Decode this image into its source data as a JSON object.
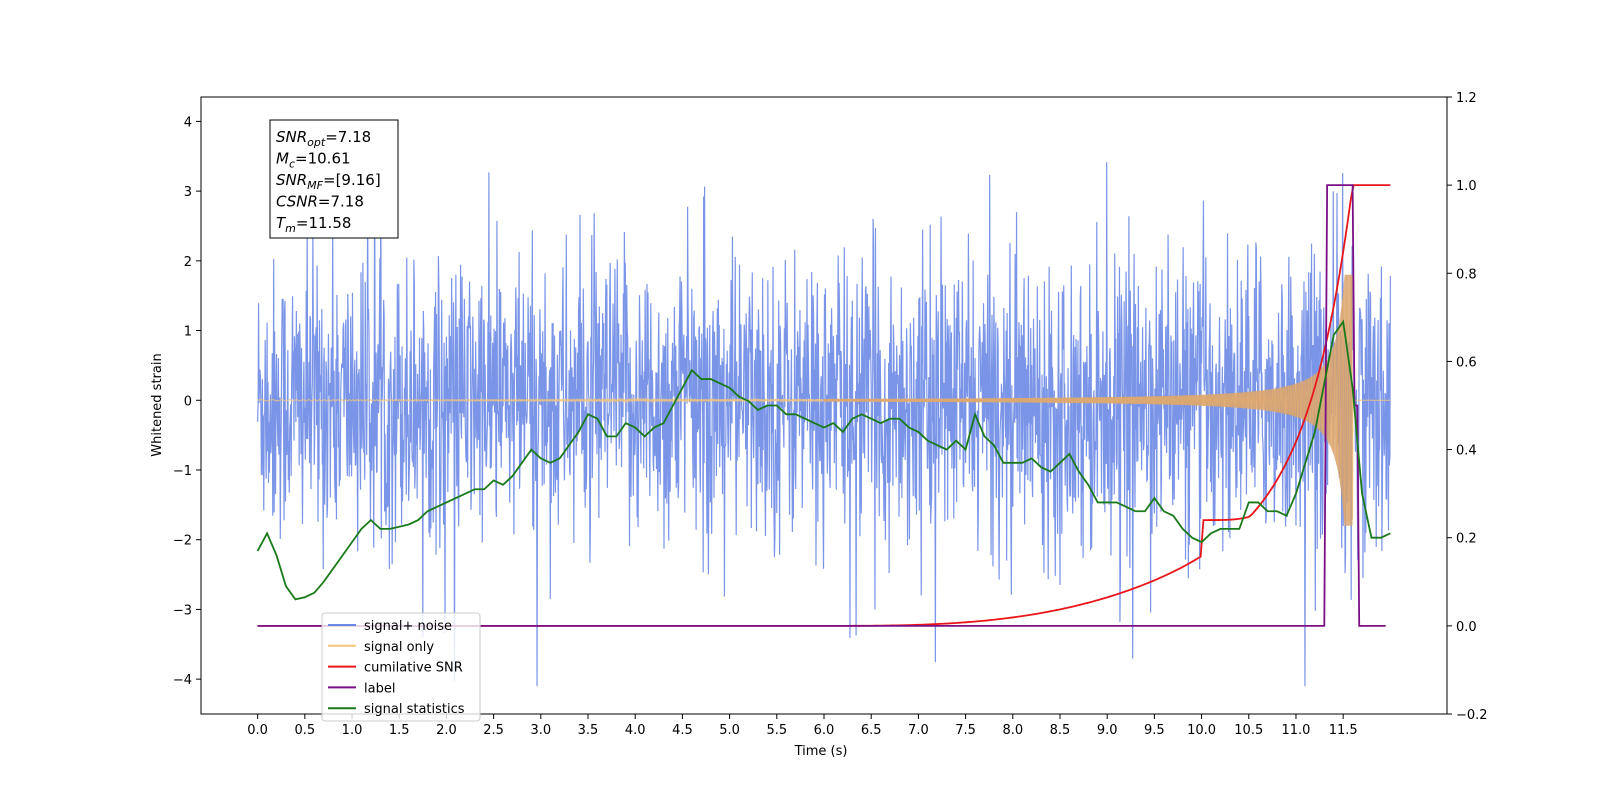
{
  "chart_data": {
    "type": "line",
    "xlabel": "Time (s)",
    "ylabel_left": "Whitened strain",
    "ylabel_right": "",
    "xlim": [
      -0.6,
      12.6
    ],
    "ylim_left": [
      -4.5,
      4.35
    ],
    "ylim_right": [
      -0.2,
      1.2
    ],
    "x_ticks": [
      "0.0",
      "0.5",
      "1.0",
      "1.5",
      "2.0",
      "2.5",
      "3.0",
      "3.5",
      "4.0",
      "4.5",
      "5.0",
      "5.5",
      "6.0",
      "6.5",
      "7.0",
      "7.5",
      "8.0",
      "8.5",
      "9.0",
      "9.5",
      "10.0",
      "10.5",
      "11.0",
      "11.5"
    ],
    "y_ticks_left": [
      "−4",
      "−3",
      "−2",
      "−1",
      "0",
      "1",
      "2",
      "3",
      "4"
    ],
    "y_ticks_right": [
      "−0.2",
      "0.0",
      "0.2",
      "0.4",
      "0.6",
      "0.8",
      "1.0",
      "1.2"
    ],
    "grid": false,
    "legend_position": "bottom-left",
    "annotation": {
      "lines": [
        {
          "base": "SNR",
          "sub": "opt",
          "rest": "=7.18"
        },
        {
          "base": "M",
          "sub": "c",
          "rest": "=10.61"
        },
        {
          "base": "SNR",
          "sub": "MF",
          "rest": "=[9.16]"
        },
        {
          "base": "CSNR",
          "sub": "",
          "rest": "=7.18"
        },
        {
          "base": "T",
          "sub": "m",
          "rest": "=11.58"
        }
      ]
    },
    "series": [
      {
        "name": "signal+ noise",
        "color": "#6b8ae6",
        "axis": "left",
        "kind": "noise",
        "description_range": [
          -4.1,
          3.95
        ]
      },
      {
        "name": "signal only",
        "color": "#f5c57a",
        "axis": "left",
        "kind": "chirp"
      },
      {
        "name": "cumilative SNR",
        "color": "#e8161a",
        "axis": "right",
        "x": [
          0.0,
          6.0,
          6.5,
          7.0,
          7.5,
          8.0,
          8.5,
          9.0,
          9.5,
          10.0,
          10.5,
          10.8,
          11.0,
          11.2,
          11.3,
          11.4,
          11.5,
          11.55,
          11.6,
          12.0
        ],
        "y": [
          0.0,
          0.0,
          0.002,
          0.01,
          0.03,
          0.065,
          0.1,
          0.14,
          0.185,
          0.24,
          0.31,
          0.37,
          0.42,
          0.5,
          0.57,
          0.68,
          0.88,
          0.97,
          1.0,
          1.0
        ]
      },
      {
        "name": "label",
        "color": "#7b0f86",
        "axis": "right",
        "x": [
          0.0,
          11.3,
          11.33,
          11.6,
          11.62,
          11.65,
          11.67,
          11.95
        ],
        "y": [
          0.0,
          0.0,
          1.0,
          1.0,
          0.5,
          0.5,
          0.0,
          0.0
        ]
      },
      {
        "name": "signal statistics",
        "color": "#1a7a1a",
        "axis": "right",
        "x": [
          0.0,
          0.1,
          0.2,
          0.3,
          0.4,
          0.5,
          0.6,
          0.7,
          0.8,
          0.9,
          1.0,
          1.1,
          1.2,
          1.3,
          1.4,
          1.5,
          1.6,
          1.7,
          1.8,
          1.9,
          2.0,
          2.1,
          2.2,
          2.3,
          2.4,
          2.5,
          2.6,
          2.7,
          2.8,
          2.9,
          3.0,
          3.1,
          3.2,
          3.3,
          3.4,
          3.5,
          3.6,
          3.7,
          3.8,
          3.9,
          4.0,
          4.1,
          4.2,
          4.3,
          4.4,
          4.5,
          4.6,
          4.7,
          4.8,
          4.9,
          5.0,
          5.1,
          5.2,
          5.3,
          5.4,
          5.5,
          5.6,
          5.7,
          5.8,
          5.9,
          6.0,
          6.1,
          6.2,
          6.3,
          6.4,
          6.5,
          6.6,
          6.7,
          6.8,
          6.9,
          7.0,
          7.1,
          7.2,
          7.3,
          7.4,
          7.5,
          7.6,
          7.7,
          7.8,
          7.9,
          8.0,
          8.1,
          8.2,
          8.3,
          8.4,
          8.5,
          8.6,
          8.7,
          8.8,
          8.9,
          9.0,
          9.1,
          9.2,
          9.3,
          9.4,
          9.5,
          9.6,
          9.7,
          9.8,
          9.9,
          10.0,
          10.1,
          10.2,
          10.3,
          10.4,
          10.5,
          10.6,
          10.7,
          10.8,
          10.9,
          11.0,
          11.1,
          11.2,
          11.3,
          11.4,
          11.5,
          11.6,
          11.7,
          11.8,
          11.9,
          12.0
        ],
        "y": [
          0.17,
          0.21,
          0.16,
          0.09,
          0.06,
          0.065,
          0.075,
          0.1,
          0.13,
          0.16,
          0.19,
          0.22,
          0.24,
          0.22,
          0.22,
          0.225,
          0.23,
          0.24,
          0.26,
          0.27,
          0.28,
          0.29,
          0.3,
          0.31,
          0.31,
          0.33,
          0.32,
          0.34,
          0.37,
          0.4,
          0.38,
          0.37,
          0.38,
          0.41,
          0.44,
          0.48,
          0.47,
          0.43,
          0.43,
          0.46,
          0.45,
          0.43,
          0.45,
          0.46,
          0.5,
          0.54,
          0.58,
          0.56,
          0.56,
          0.55,
          0.54,
          0.52,
          0.51,
          0.49,
          0.5,
          0.5,
          0.48,
          0.48,
          0.47,
          0.46,
          0.45,
          0.46,
          0.44,
          0.47,
          0.48,
          0.47,
          0.46,
          0.47,
          0.47,
          0.45,
          0.44,
          0.42,
          0.41,
          0.4,
          0.42,
          0.4,
          0.48,
          0.43,
          0.41,
          0.37,
          0.37,
          0.37,
          0.38,
          0.36,
          0.35,
          0.37,
          0.39,
          0.35,
          0.32,
          0.28,
          0.28,
          0.28,
          0.27,
          0.26,
          0.26,
          0.29,
          0.26,
          0.25,
          0.22,
          0.2,
          0.19,
          0.21,
          0.22,
          0.22,
          0.22,
          0.28,
          0.28,
          0.26,
          0.26,
          0.25,
          0.3,
          0.37,
          0.44,
          0.55,
          0.66,
          0.69,
          0.54,
          0.3,
          0.2,
          0.2,
          0.21
        ]
      }
    ]
  }
}
